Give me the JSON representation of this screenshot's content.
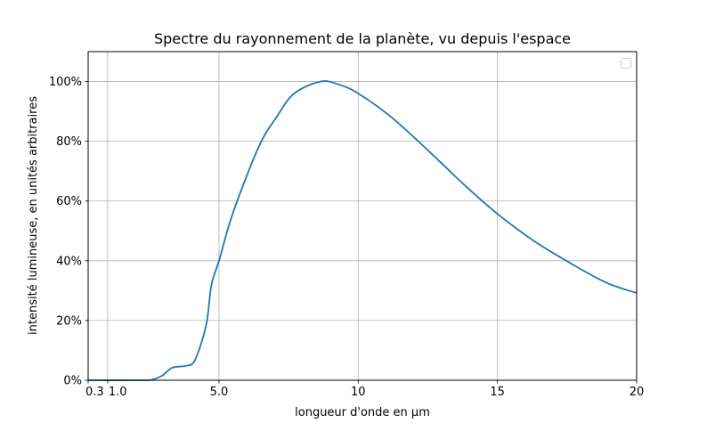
{
  "chart_data": {
    "type": "line",
    "title": "Spectre du rayonnement de la planète, vu depuis l'espace",
    "xlabel": "longueur d'onde en µm",
    "ylabel": "intensité lumineuse, en unités arbitraires",
    "xlim": [
      0.3,
      20
    ],
    "ylim": [
      0,
      1.1
    ],
    "grid": true,
    "legend": {
      "placement": "upper right",
      "entries": []
    },
    "x_ticks": [
      {
        "value": 0.3,
        "label": "0.3"
      },
      {
        "value": 1.0,
        "label": "1.0"
      },
      {
        "value": 5.0,
        "label": "5.0"
      },
      {
        "value": 10,
        "label": "10"
      },
      {
        "value": 15,
        "label": "15"
      },
      {
        "value": 20,
        "label": "20"
      }
    ],
    "y_ticks": [
      {
        "value": 0,
        "label": "0%"
      },
      {
        "value": 0.2,
        "label": "20%"
      },
      {
        "value": 0.4,
        "label": "40%"
      },
      {
        "value": 0.6,
        "label": "60%"
      },
      {
        "value": 0.8,
        "label": "80%"
      },
      {
        "value": 1.0,
        "label": "100%"
      }
    ],
    "series": [
      {
        "color": "#1f77b4",
        "x": [
          0.3,
          2.27,
          2.6,
          2.97,
          3.32,
          3.8,
          4.09,
          4.35,
          4.57,
          4.73,
          5.0,
          5.5,
          6.42,
          7.06,
          7.7,
          8.66,
          9.3,
          10,
          11.2,
          12.5,
          13.8,
          15,
          16.3,
          17.6,
          18.9,
          20
        ],
        "y": [
          0,
          0,
          0.002,
          0.016,
          0.042,
          0.048,
          0.06,
          0.12,
          0.2,
          0.32,
          0.4,
          0.56,
          0.78,
          0.88,
          0.96,
          1.0,
          0.99,
          0.96,
          0.88,
          0.77,
          0.655,
          0.557,
          0.467,
          0.393,
          0.327,
          0.292
        ]
      }
    ]
  }
}
